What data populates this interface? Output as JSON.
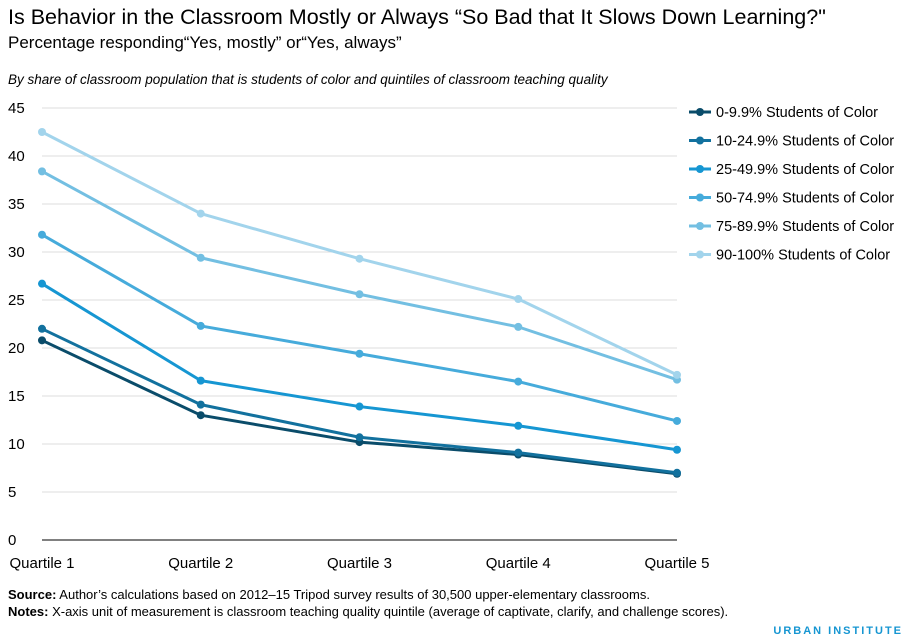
{
  "title": "Is Behavior in the Classroom Mostly or Always “So Bad that It Slows Down Learning?\"",
  "subtitle": "Percentage responding“Yes, mostly” or“Yes, always”",
  "caption": "By share of classroom population that is students  of color and quintiles of classroom teaching quality",
  "footer": {
    "source_label": "Source:",
    "source_text": " Author’s calculations based on 2012–15 Tripod survey results of 30,500  upper-elementary classrooms.",
    "notes_label": "Notes:",
    "notes_text": " X-axis unit of measurement is classroom teaching quality quintile (average of  captivate, clarify, and challenge scores)."
  },
  "brand": "URBAN INSTITUTE",
  "chart_data": {
    "type": "line",
    "categories": [
      "Quartile 1",
      "Quartile 2",
      "Quartile 3",
      "Quartile 4",
      "Quartile 5"
    ],
    "ylim": [
      0,
      45
    ],
    "yticks": [
      0,
      5,
      10,
      15,
      20,
      25,
      30,
      35,
      40,
      45
    ],
    "grid": true,
    "legend_position": "right",
    "series": [
      {
        "name": "0-9.9% Students of Color",
        "color": "#0a4c6a",
        "values": [
          20.8,
          13.0,
          10.2,
          8.9,
          6.9
        ]
      },
      {
        "name": "10-24.9% Students of Color",
        "color": "#12719e",
        "values": [
          22.0,
          14.1,
          10.7,
          9.1,
          7.0
        ]
      },
      {
        "name": "25-49.9% Students of Color",
        "color": "#1696d2",
        "values": [
          26.7,
          16.6,
          13.9,
          11.9,
          9.4
        ]
      },
      {
        "name": "50-74.9% Students of Color",
        "color": "#46abdb",
        "values": [
          31.8,
          22.3,
          19.4,
          16.5,
          12.4
        ]
      },
      {
        "name": "75-89.9% Students of Color",
        "color": "#73bfe2",
        "values": [
          38.4,
          29.4,
          25.6,
          22.2,
          16.7
        ]
      },
      {
        "name": "90-100% Students of Color",
        "color": "#a2d4ec",
        "values": [
          42.5,
          34.0,
          29.3,
          25.1,
          17.2
        ]
      }
    ]
  }
}
